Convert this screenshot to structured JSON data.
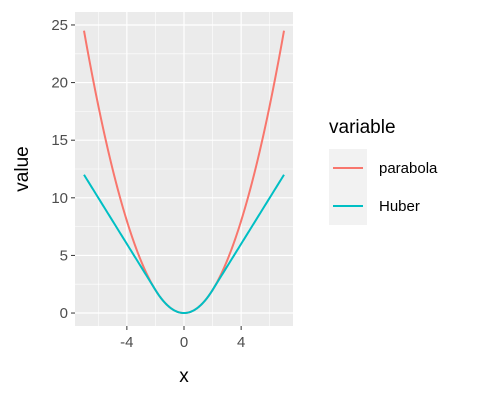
{
  "chart_data": {
    "type": "line",
    "xlabel": "x",
    "ylabel": "value",
    "xlim": [
      -7,
      7
    ],
    "ylim": [
      0,
      25
    ],
    "x_ticks": [
      -4,
      0,
      4
    ],
    "x_tick_labels": [
      "-4",
      "0",
      "4"
    ],
    "y_ticks": [
      0,
      5,
      10,
      15,
      20,
      25
    ],
    "y_tick_labels": [
      "0",
      "5",
      "10",
      "15",
      "20",
      "25"
    ],
    "grid": true,
    "legend": {
      "title": "variable",
      "position": "right"
    },
    "colors": {
      "parabola": "#F8766D",
      "Huber": "#00BFC4",
      "panel": "#EBEBEB",
      "grid": "#FFFFFF"
    },
    "series": [
      {
        "name": "parabola",
        "x": [
          -7,
          -6,
          -5,
          -4,
          -3,
          -2,
          -1,
          0,
          1,
          2,
          3,
          4,
          5,
          6,
          7
        ],
        "values": [
          24.5,
          18,
          12.5,
          8,
          4.5,
          2,
          0.5,
          0,
          0.5,
          2,
          4.5,
          8,
          12.5,
          18,
          24.5
        ]
      },
      {
        "name": "Huber",
        "x": [
          -7,
          -6,
          -5,
          -4,
          -3,
          -2,
          -1,
          0,
          1,
          2,
          3,
          4,
          5,
          6,
          7
        ],
        "values": [
          12,
          10,
          8,
          6,
          4,
          2,
          0.5,
          0,
          0.5,
          2,
          4,
          6,
          8,
          10,
          12
        ]
      }
    ]
  }
}
